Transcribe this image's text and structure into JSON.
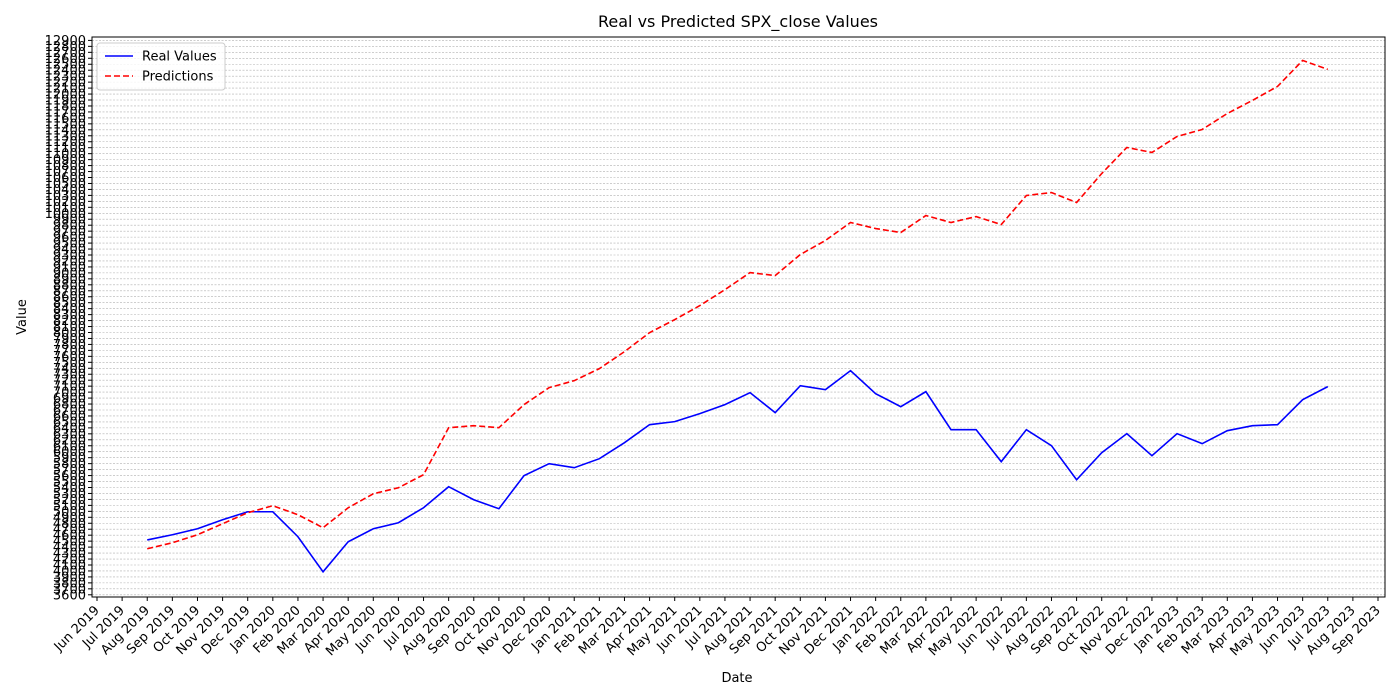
{
  "chart_data": {
    "type": "line",
    "title": "Real vs Predicted SPX_close Values",
    "xlabel": "Date",
    "ylabel": "Value",
    "categories": [
      "Jun 2019",
      "Jul 2019",
      "Aug 2019",
      "Sep 2019",
      "Oct 2019",
      "Nov 2019",
      "Dec 2019",
      "Jan 2020",
      "Feb 2020",
      "Mar 2020",
      "Apr 2020",
      "May 2020",
      "Jun 2020",
      "Jul 2020",
      "Aug 2020",
      "Sep 2020",
      "Oct 2020",
      "Nov 2020",
      "Dec 2020",
      "Jan 2021",
      "Feb 2021",
      "Mar 2021",
      "Apr 2021",
      "May 2021",
      "Jun 2021",
      "Jul 2021",
      "Aug 2021",
      "Sep 2021",
      "Oct 2021",
      "Nov 2021",
      "Dec 2021",
      "Jan 2022",
      "Feb 2022",
      "Mar 2022",
      "Apr 2022",
      "May 2022",
      "Jun 2022",
      "Jul 2022",
      "Aug 2022",
      "Sep 2022",
      "Oct 2022",
      "Nov 2022",
      "Dec 2022",
      "Jan 2023",
      "Feb 2023",
      "Mar 2023",
      "Apr 2023",
      "May 2023",
      "Jun 2023",
      "Jul 2023",
      "Aug 2023",
      "Sep 2023"
    ],
    "series": [
      {
        "name": "Real Values",
        "color": "#0000ff",
        "dash": "solid",
        "values": [
          null,
          null,
          4520,
          4607,
          4708,
          4859,
          4993,
          4993,
          4574,
          3986,
          4490,
          4708,
          4809,
          5060,
          5413,
          5195,
          5044,
          5598,
          5799,
          5732,
          5883,
          6152,
          6454,
          6505,
          6639,
          6790,
          6991,
          6655,
          7108,
          7041,
          7360,
          6974,
          6756,
          7008,
          6370,
          6370,
          5833,
          6370,
          6101,
          5530,
          5984,
          6303,
          5933,
          6303,
          6135,
          6353,
          6437,
          6454,
          6873,
          7092,
          null,
          null
        ]
      },
      {
        "name": "Predictions",
        "color": "#ff0000",
        "dash": "dashed",
        "values": [
          null,
          null,
          4372,
          4473,
          4607,
          4792,
          4977,
          5094,
          4943,
          4725,
          5060,
          5295,
          5396,
          5614,
          6403,
          6437,
          6403,
          6790,
          7075,
          7192,
          7394,
          7679,
          7998,
          8216,
          8451,
          8719,
          9005,
          8955,
          9308,
          9543,
          9845,
          9744,
          9677,
          9962,
          9845,
          9945,
          9811,
          10298,
          10348,
          10180,
          10667,
          11104,
          11020,
          11288,
          11406,
          11674,
          11893,
          12128,
          12564,
          12413,
          null,
          null
        ]
      }
    ],
    "ylim": [
      3563,
      12957
    ],
    "yticks": [
      3600,
      3700,
      3800,
      3900,
      4000,
      4100,
      4200,
      4300,
      4400,
      4500,
      4600,
      4700,
      4800,
      4900,
      5000,
      5100,
      5200,
      5300,
      5400,
      5500,
      5600,
      5700,
      5800,
      5900,
      6000,
      6100,
      6200,
      6300,
      6400,
      6500,
      6600,
      6700,
      6800,
      6900,
      7000,
      7100,
      7200,
      7300,
      7400,
      7500,
      7600,
      7700,
      7800,
      7900,
      8000,
      8100,
      8200,
      8300,
      8400,
      8500,
      8600,
      8700,
      8800,
      8900,
      9000,
      9100,
      9200,
      9300,
      9400,
      9500,
      9600,
      9700,
      9800,
      9900,
      10000,
      10100,
      10200,
      10300,
      10400,
      10500,
      10600,
      10700,
      10800,
      10900,
      11000,
      11100,
      11200,
      11300,
      11400,
      11500,
      11600,
      11700,
      11800,
      11900,
      12000,
      12100,
      12200,
      12300,
      12400,
      12500,
      12600,
      12700,
      12800,
      12900
    ],
    "grid": "y",
    "legend": "upper left"
  }
}
